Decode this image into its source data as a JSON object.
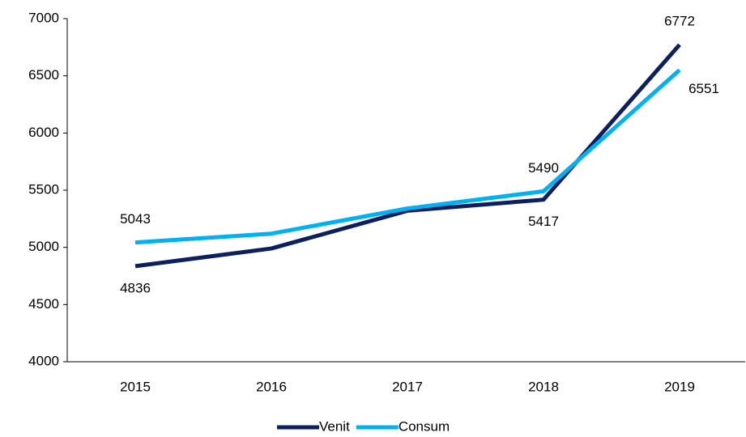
{
  "chart_data": {
    "type": "line",
    "categories": [
      "2015",
      "2016",
      "2017",
      "2018",
      "2019"
    ],
    "series": [
      {
        "name": "Venit",
        "color": "#0d1f5c",
        "values": [
          4836,
          4990,
          5320,
          5417,
          6772
        ],
        "value_labels": [
          "4836",
          null,
          null,
          "5417",
          "6772"
        ]
      },
      {
        "name": "Consum",
        "color": "#00b0f0",
        "values": [
          5043,
          5120,
          5340,
          5490,
          6551
        ],
        "value_labels": [
          "5043",
          null,
          null,
          "5490",
          "6551"
        ]
      }
    ],
    "ylim": [
      4000,
      7000
    ],
    "yticks": [
      4000,
      4500,
      5000,
      5500,
      6000,
      6500,
      7000
    ],
    "grid": false,
    "legend": "bottom"
  }
}
